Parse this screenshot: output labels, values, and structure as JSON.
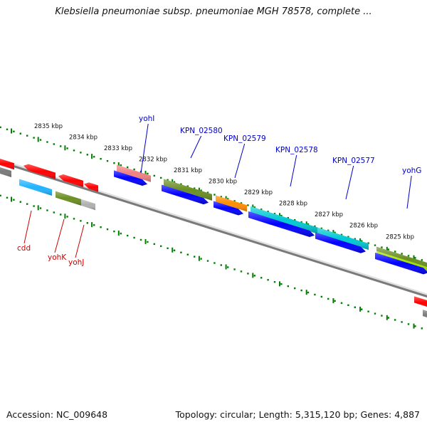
{
  "title": "Klebsiella pneumoniae subsp. pneumoniae MGH 78578, complete ...",
  "footer": {
    "accession": "Accession: NC_009648",
    "summary": "Topology: circular; Length: 5,315,120 bp; Genes: 4,887"
  },
  "ticks": [
    "2835 kbp",
    "2834 kbp",
    "2833 kbp",
    "2832 kbp",
    "2831 kbp",
    "2830 kbp",
    "2829 kbp",
    "2828 kbp",
    "2827 kbp",
    "2826 kbp",
    "2825 kbp"
  ],
  "genes_top": [
    "yohI",
    "KPN_02580",
    "KPN_02579",
    "KPN_02578",
    "KPN_02577",
    "yohG"
  ],
  "genes_bottom": [
    "cdd",
    "yohK",
    "yohJ"
  ],
  "colors": {
    "red": "#ff0000",
    "pink": "#f08080",
    "blue": "#0000ff",
    "olive": "#6b8e23",
    "orange": "#ff8c00",
    "cyan": "#00c8d2",
    "lightblue": "#20b4ff",
    "yellowgreen": "#a0e000",
    "gray": "#b0b0b0",
    "dot_green": "#008000",
    "top_label": "#0000c8",
    "bottom_label": "#cc0000"
  }
}
